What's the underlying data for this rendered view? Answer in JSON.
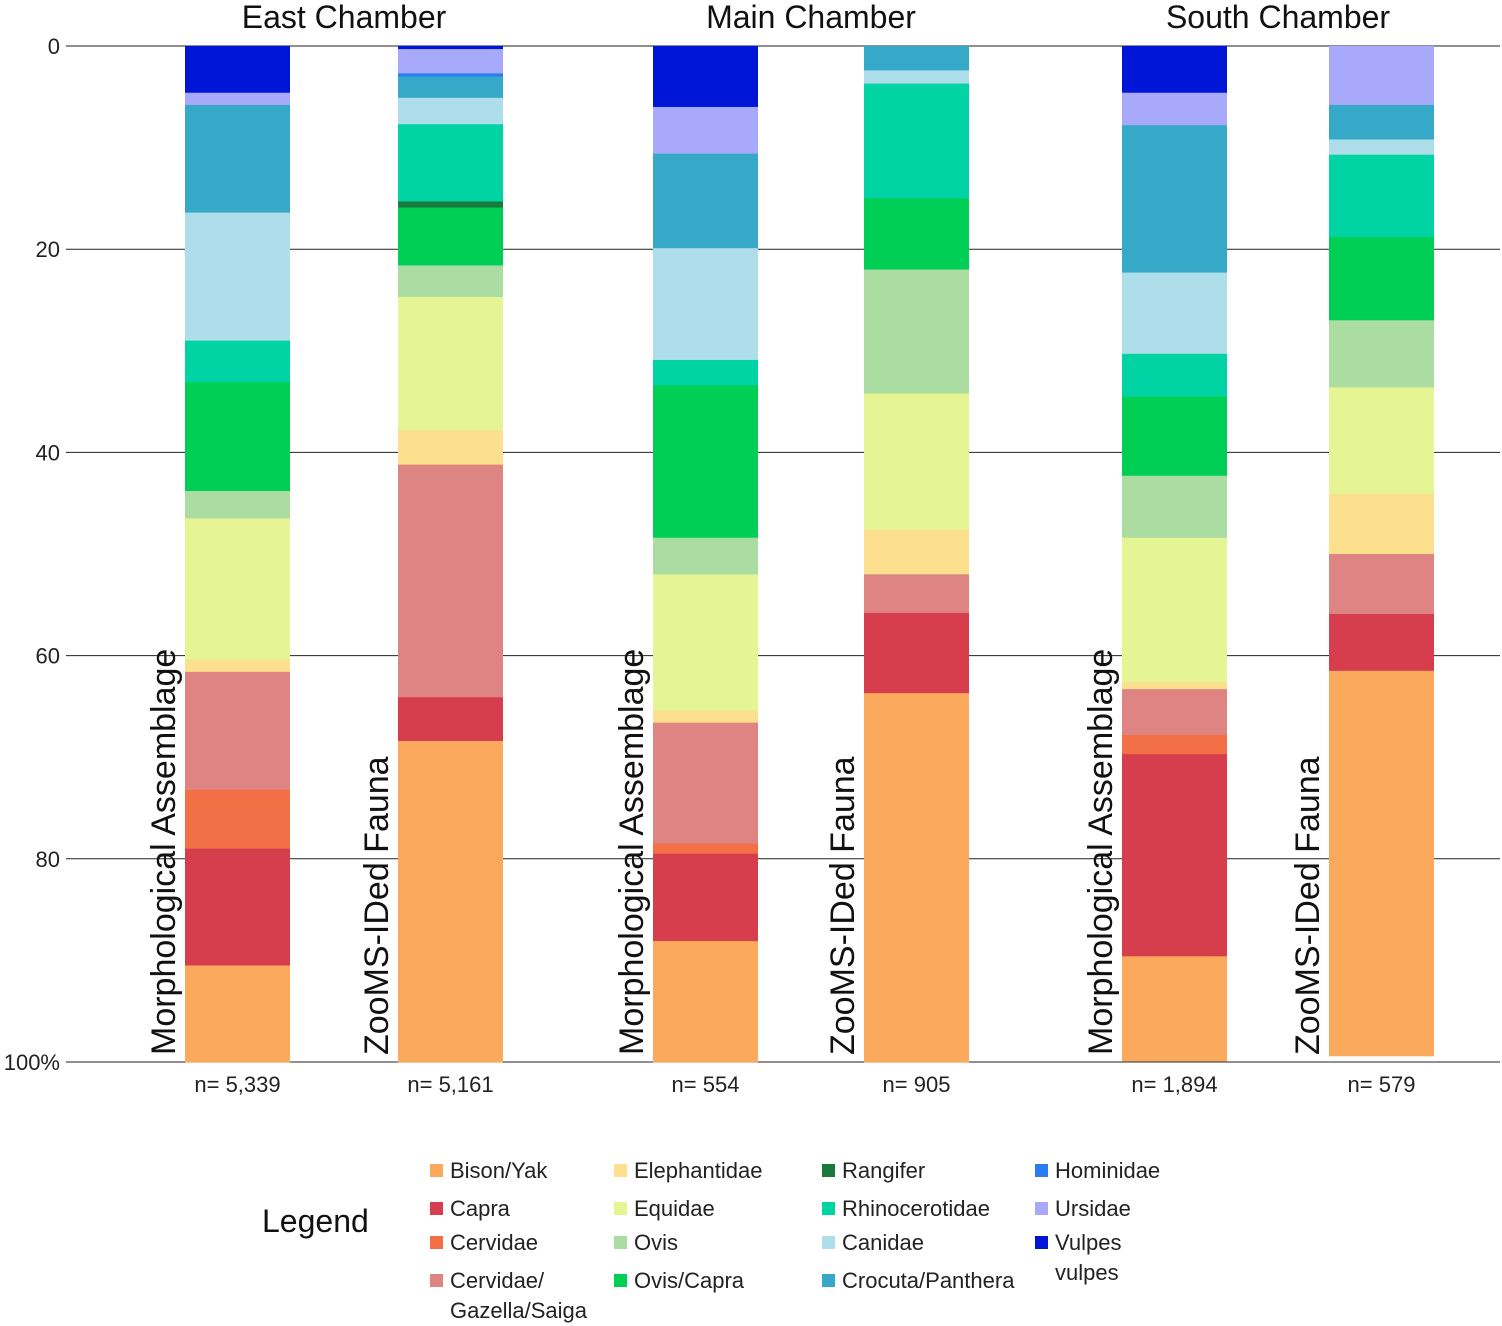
{
  "chart_data": {
    "type": "bar",
    "stacked": true,
    "orientation": "vertical",
    "y_axis": {
      "ticks": [
        "0",
        "20",
        "40",
        "60",
        "80",
        "100%"
      ],
      "ylim": [
        0,
        100
      ],
      "inverted": true
    },
    "groups": [
      {
        "title": "East Chamber",
        "bars": [
          0,
          1
        ]
      },
      {
        "title": "Main Chamber",
        "bars": [
          2,
          3
        ]
      },
      {
        "title": "South Chamber",
        "bars": [
          4,
          5
        ]
      }
    ],
    "bars": [
      {
        "label": "Morphological Assemblage",
        "n": "n= 5,339",
        "segments": [
          [
            "Vulpes vulpes",
            4.6
          ],
          [
            "Ursidae",
            1.2
          ],
          [
            "Crocuta/Panthera",
            10.6
          ],
          [
            "Canidae",
            12.6
          ],
          [
            "Rhinocerotidae",
            4.1
          ],
          [
            "Ovis/Capra",
            10.7
          ],
          [
            "Ovis",
            2.7
          ],
          [
            "Equidae",
            13.9
          ],
          [
            "Elephantidae",
            1.2
          ],
          [
            "Cervidae/ Gazella/Saiga",
            11.6
          ],
          [
            "Cervidae",
            5.8
          ],
          [
            "Capra",
            11.5
          ],
          [
            "Bison/Yak",
            9.5
          ]
        ]
      },
      {
        "label": "ZooMS-IDed Fauna",
        "n": "n= 5,161",
        "segments": [
          [
            "Vulpes vulpes",
            0.3
          ],
          [
            "Ursidae",
            2.4
          ],
          [
            "Hominidae",
            0.3
          ],
          [
            "Crocuta/Panthera",
            2.1
          ],
          [
            "Canidae",
            2.6
          ],
          [
            "Rhinocerotidae",
            7.6
          ],
          [
            "Rangifer",
            0.6
          ],
          [
            "Ovis/Capra",
            5.7
          ],
          [
            "Ovis",
            3.1
          ],
          [
            "Equidae",
            13.1
          ],
          [
            "Elephantidae",
            3.4
          ],
          [
            "Cervidae/ Gazella/Saiga",
            22.9
          ],
          [
            "Capra",
            4.3
          ],
          [
            "Bison/Yak",
            31.6
          ]
        ]
      },
      {
        "label": "Morphological Assemblage",
        "n": "n= 554",
        "segments": [
          [
            "Vulpes vulpes",
            6.0
          ],
          [
            "Ursidae",
            4.6
          ],
          [
            "Crocuta/Panthera",
            9.3
          ],
          [
            "Canidae",
            11.0
          ],
          [
            "Rhinocerotidae",
            2.5
          ],
          [
            "Ovis/Capra",
            15.0
          ],
          [
            "Ovis",
            3.6
          ],
          [
            "Equidae",
            13.4
          ],
          [
            "Elephantidae",
            1.2
          ],
          [
            "Cervidae/ Gazella/Saiga",
            11.9
          ],
          [
            "Cervidae",
            1.0
          ],
          [
            "Capra",
            8.6
          ],
          [
            "Bison/Yak",
            11.9
          ]
        ]
      },
      {
        "label": "ZooMS-IDed Fauna",
        "n": "n= 905",
        "segments": [
          [
            "Crocuta/Panthera",
            2.4
          ],
          [
            "Canidae",
            1.3
          ],
          [
            "Rhinocerotidae",
            11.3
          ],
          [
            "Ovis/Capra",
            7.0
          ],
          [
            "Ovis",
            12.2
          ],
          [
            "Equidae",
            13.4
          ],
          [
            "Elephantidae",
            4.4
          ],
          [
            "Cervidae/ Gazella/Saiga",
            3.8
          ],
          [
            "Capra",
            7.9
          ],
          [
            "Bison/Yak",
            36.3
          ]
        ]
      },
      {
        "label": "Morphological Assemblage",
        "n": "n= 1,894",
        "segments": [
          [
            "Vulpes vulpes",
            4.6
          ],
          [
            "Ursidae",
            3.2
          ],
          [
            "Crocuta/Panthera",
            14.5
          ],
          [
            "Canidae",
            8.0
          ],
          [
            "Rhinocerotidae",
            4.2
          ],
          [
            "Ovis/Capra",
            7.8
          ],
          [
            "Ovis",
            6.1
          ],
          [
            "Equidae",
            14.2
          ],
          [
            "Elephantidae",
            0.7
          ],
          [
            "Cervidae/ Gazella/Saiga",
            4.5
          ],
          [
            "Cervidae",
            1.9
          ],
          [
            "Capra",
            19.9
          ],
          [
            "Bison/Yak",
            10.3
          ]
        ]
      },
      {
        "label": "ZooMS-IDed Fauna",
        "n": "n= 579",
        "segments": [
          [
            "Ursidae",
            5.8
          ],
          [
            "Crocuta/Panthera",
            3.4
          ],
          [
            "Canidae",
            1.5
          ],
          [
            "Rhinocerotidae",
            8.1
          ],
          [
            "Ovis/Capra",
            8.2
          ],
          [
            "Ovis",
            6.6
          ],
          [
            "Equidae",
            10.5
          ],
          [
            "Elephantidae",
            5.9
          ],
          [
            "Cervidae/ Gazella/Saiga",
            5.9
          ],
          [
            "Capra",
            5.6
          ],
          [
            "Bison/Yak",
            37.9
          ]
        ]
      }
    ],
    "colors": {
      "Bison/Yak": "#fbaa5d",
      "Capra": "#d63d4d",
      "Cervidae": "#f36f45",
      "Cervidae/ Gazella/Saiga": "#de8583",
      "Elephantidae": "#fce08d",
      "Equidae": "#e5f594",
      "Ovis": "#abdca1",
      "Ovis/Capra": "#00cf55",
      "Rangifer": "#1a7a3c",
      "Rhinocerotidae": "#00d4a5",
      "Canidae": "#addee9",
      "Crocuta/Panthera": "#36a9c8",
      "Hominidae": "#2a7cf0",
      "Ursidae": "#a9a9fb",
      "Vulpes vulpes": "#0016d6"
    },
    "legend": {
      "title": "Legend",
      "columns": [
        [
          "Bison/Yak",
          "Capra",
          "Cervidae",
          "Cervidae/\nGazella/Saiga"
        ],
        [
          "Elephantidae",
          "Equidae",
          "Ovis",
          "Ovis/Capra"
        ],
        [
          "Rangifer",
          "Rhinocerotidae",
          "Canidae",
          "Crocuta/Panthera"
        ],
        [
          "Hominidae",
          "Ursidae",
          "Vulpes vulpes"
        ]
      ]
    }
  }
}
